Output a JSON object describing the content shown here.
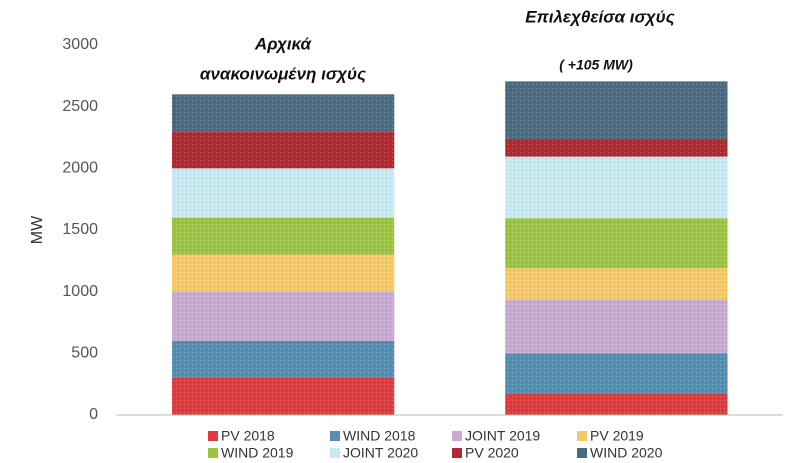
{
  "chart_data": {
    "type": "stacked_bar",
    "annotations": [
      "Αρχικά",
      "ανακοινωμένη ισχύς",
      "Επιλεχθείσα ισχύς",
      "( +105 MW)"
    ],
    "ylabel": "MW",
    "categories": [
      null,
      null
    ],
    "series": [
      {
        "name": "PV 2018",
        "color": "#e23a3f",
        "values": [
          300,
          170
        ]
      },
      {
        "name": "WIND 2018",
        "color": "#5590b4",
        "values": [
          300,
          330
        ]
      },
      {
        "name": "JOINT 2019",
        "color": "#c9abd2",
        "values": [
          400,
          435
        ]
      },
      {
        "name": "PV 2019",
        "color": "#f6c963",
        "values": [
          300,
          255
        ]
      },
      {
        "name": "WIND 2019",
        "color": "#9dc43e",
        "values": [
          300,
          405
        ]
      },
      {
        "name": "JOINT 2020",
        "color": "#c6e9f2",
        "values": [
          400,
          500
        ]
      },
      {
        "name": "PV 2020",
        "color": "#b22a31",
        "values": [
          300,
          145
        ]
      },
      {
        "name": "WIND 2020",
        "color": "#4b6b82",
        "values": [
          300,
          465
        ]
      }
    ],
    "ylim": [
      0,
      3000
    ],
    "yticks": [
      0,
      500,
      1000,
      1500,
      2000,
      2500,
      3000
    ],
    "grid": false,
    "legend": "bottom"
  }
}
